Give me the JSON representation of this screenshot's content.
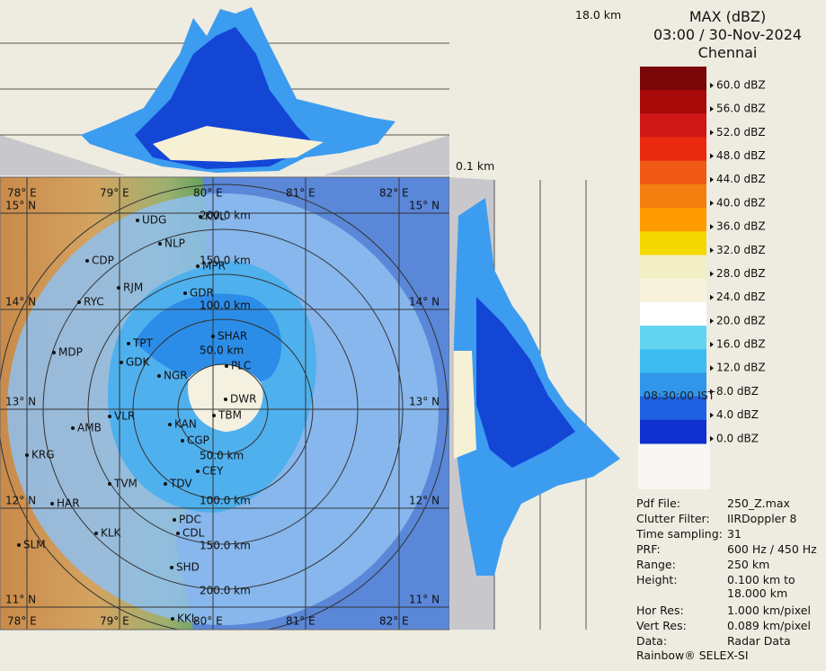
{
  "header": {
    "title": "MAX (dBZ)",
    "datetime": "03:00 / 30-Nov-2024",
    "station": "Chennai"
  },
  "profile_labels": {
    "top_height": "18.0 km",
    "bottom_height": "0.1 km"
  },
  "legend": [
    "60.0 dBZ",
    "56.0 dBZ",
    "52.0 dBZ",
    "48.0 dBZ",
    "44.0 dBZ",
    "40.0 dBZ",
    "36.0 dBZ",
    "32.0 dBZ",
    "28.0 dBZ",
    "24.0 dBZ",
    "20.0 dBZ",
    "16.0 dBZ",
    "12.0 dBZ",
    "8.0 dBZ",
    "4.0 dBZ",
    "0.0 dBZ"
  ],
  "time_label": "08:30:00 IST",
  "map": {
    "longitudes": [
      "78° E",
      "79° E",
      "80° E",
      "81° E",
      "82° E"
    ],
    "latitudes": [
      "15° N",
      "14° N",
      "13° N",
      "12° N",
      "11° N"
    ],
    "ranges": [
      "50.0 km",
      "100.0 km",
      "150.0 km",
      "200.0 km"
    ],
    "cities": [
      "UDG",
      "KVL",
      "NLP",
      "CDP",
      "MPR",
      "RJM",
      "GDR",
      "RYC",
      "SHAR",
      "TPT",
      "MDP",
      "GDK",
      "PLC",
      "NGR",
      "DWR",
      "TBM",
      "VLR",
      "KAN",
      "AMB",
      "CGP",
      "KRG",
      "CEY",
      "TVM",
      "TDV",
      "HAR",
      "PDC",
      "CDL",
      "KLK",
      "SLM",
      "SHD",
      "KKL"
    ]
  },
  "info": [
    {
      "label": "Pdf File:",
      "value": "250_Z.max"
    },
    {
      "label": "Clutter Filter:",
      "value": "IIRDoppler 8"
    },
    {
      "label": "Time sampling:",
      "value": "31"
    },
    {
      "label": "PRF:",
      "value": "600 Hz / 450 Hz"
    },
    {
      "label": "Range:",
      "value": "250 km"
    },
    {
      "label": "Height:",
      "value": "0.100 km to 18.000 km"
    },
    {
      "label": "Hor Res:",
      "value": "1.000 km/pixel"
    },
    {
      "label": "Vert Res:",
      "value": "0.089 km/pixel"
    },
    {
      "label": "Data:",
      "value": "Radar Data"
    }
  ],
  "footer": "Rainbow® SELEX-SI"
}
